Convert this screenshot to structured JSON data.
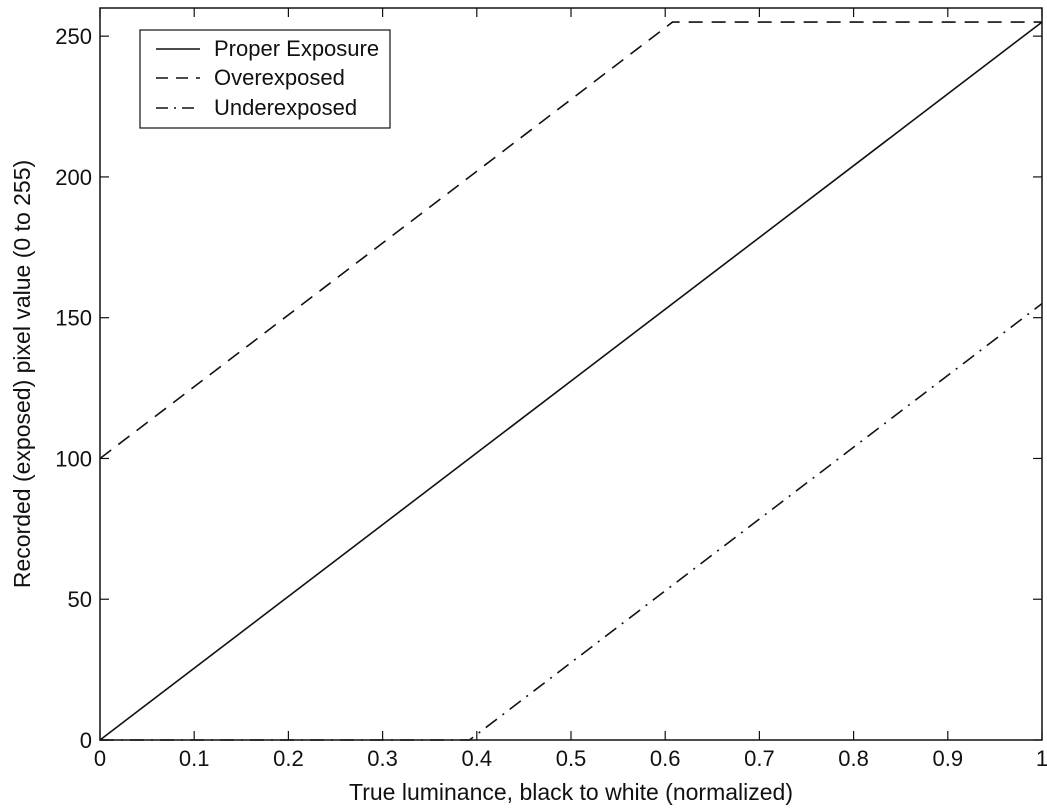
{
  "chart_data": {
    "type": "line",
    "title": "",
    "xlabel": "True luminance, black to white (normalized)",
    "ylabel": "Recorded (exposed) pixel value (0 to 255)",
    "xlim": [
      0,
      1
    ],
    "ylim": [
      0,
      260
    ],
    "xticks": [
      0,
      0.1,
      0.2,
      0.3,
      0.4,
      0.5,
      0.6,
      0.7,
      0.8,
      0.9,
      1
    ],
    "xtick_labels": [
      "0",
      "0.1",
      "0.2",
      "0.3",
      "0.4",
      "0.5",
      "0.6",
      "0.7",
      "0.8",
      "0.9",
      "1"
    ],
    "yticks": [
      0,
      50,
      100,
      150,
      200,
      250
    ],
    "ytick_labels": [
      "0",
      "50",
      "100",
      "150",
      "200",
      "250"
    ],
    "grid": false,
    "legend_position": "top-left",
    "series": [
      {
        "name": "Proper Exposure",
        "style": "solid",
        "color": "#111111",
        "points": [
          [
            0,
            0
          ],
          [
            1,
            255
          ]
        ]
      },
      {
        "name": "Overexposed",
        "style": "dashed",
        "color": "#111111",
        "points": [
          [
            0,
            100
          ],
          [
            0.6078,
            255
          ],
          [
            1,
            255
          ]
        ]
      },
      {
        "name": "Underexposed",
        "style": "dashdot",
        "color": "#111111",
        "points": [
          [
            0,
            0
          ],
          [
            0.3922,
            0
          ],
          [
            1,
            155
          ]
        ]
      }
    ]
  }
}
